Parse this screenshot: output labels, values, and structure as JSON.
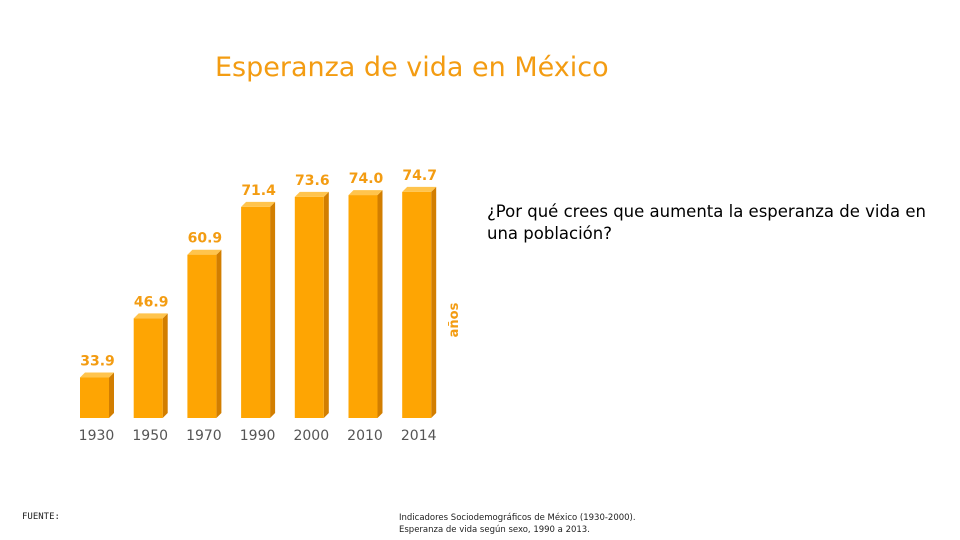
{
  "slide": {
    "title": "Esperanza de vida en México",
    "question": "¿Por qué crees que aumenta la esperanza de vida en una población?",
    "source_label": "FUENTE:",
    "source_lines": [
      "Indicadores Sociodemográficos de México (1930-2000).",
      "Esperanza de vida según sexo, 1990 a 2013."
    ]
  },
  "colors": {
    "title": "#f39c12",
    "bar_front": "#fea503",
    "bar_side": "#d27e00",
    "bar_top": "#ffc44d",
    "value_label": "#f39c12",
    "axis_label": "#555555"
  },
  "chart_data": {
    "type": "bar",
    "categories": [
      "1930",
      "1950",
      "1970",
      "1990",
      "2000",
      "2010",
      "2014"
    ],
    "values": [
      33.9,
      46.9,
      60.9,
      71.4,
      73.6,
      74.0,
      74.7
    ],
    "value_labels": [
      "33.9",
      "46.9",
      "60.9",
      "71.4",
      "73.6",
      "74.0",
      "74.7"
    ],
    "title": "",
    "xlabel": "",
    "ylabel": "años",
    "ylim": [
      25,
      76
    ],
    "grid": false,
    "legend": "none"
  }
}
